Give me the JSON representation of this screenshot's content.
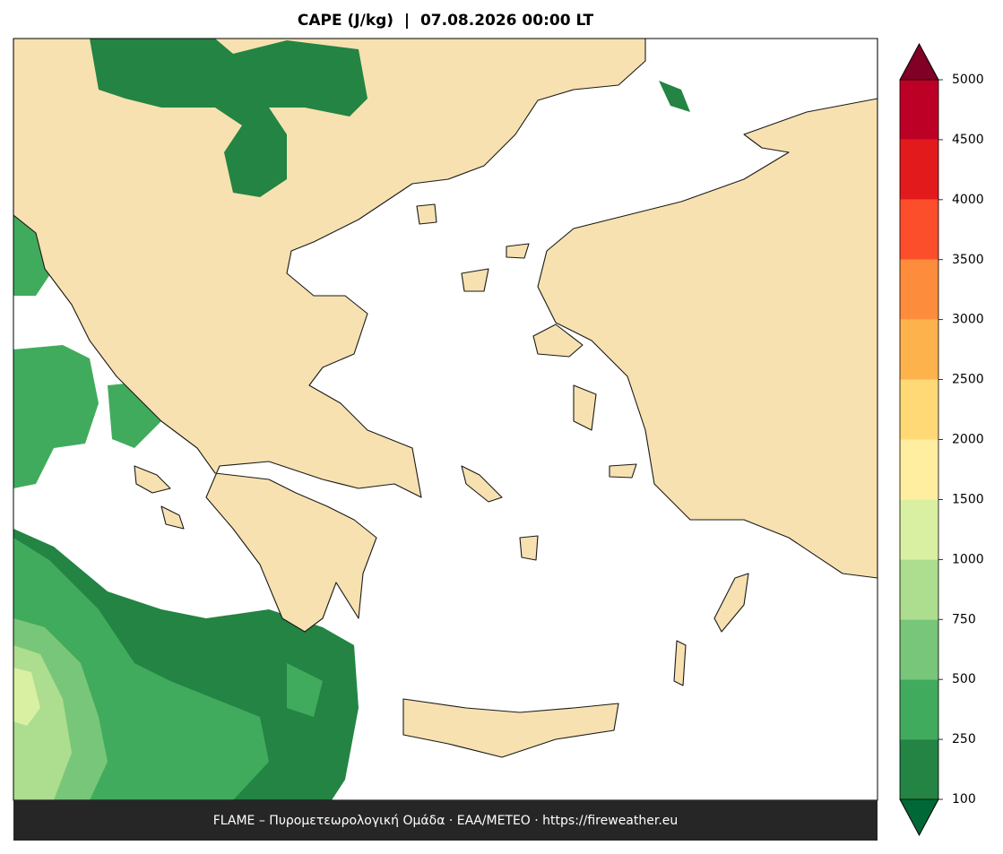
{
  "map": {
    "title": "CAPE (J/kg)  |  07.08.2026 00:00 LT",
    "footer": "FLAME – Πυρομετεωρολογική Ομάδα · ΕΑΑ/METEO · https://fireweather.eu",
    "colorbar": {
      "levels": [
        100,
        250,
        500,
        750,
        1000,
        1500,
        2000,
        2500,
        3000,
        3500,
        4000,
        4500,
        5000
      ],
      "colors": [
        "#238443",
        "#41ab5d",
        "#78c679",
        "#addd8e",
        "#d9f0a3",
        "#ffeda0",
        "#fed976",
        "#feb24c",
        "#fd8d3c",
        "#fc4e2a",
        "#e31a1c",
        "#bd0026"
      ],
      "under_color": "#006837",
      "over_color": "#800026"
    }
  }
}
